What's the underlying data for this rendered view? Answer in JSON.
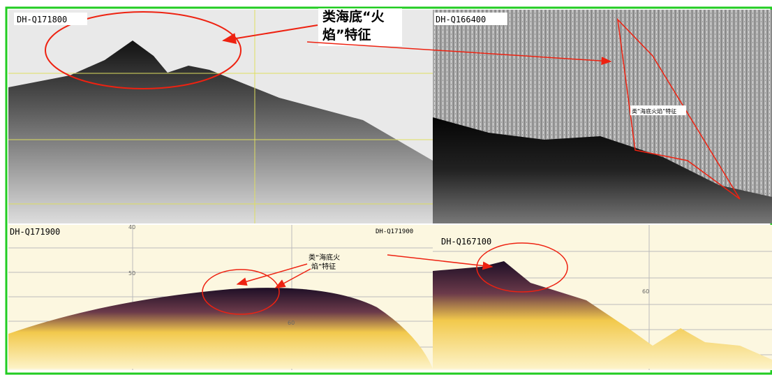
{
  "panels": [
    {
      "label": "DH-Q171800",
      "annotation": [
        "类海底“火",
        "焰”特征"
      ]
    },
    {
      "label": "DH-Q166400",
      "annotation": [
        "类“海底火焰”特征"
      ]
    },
    {
      "label": "DH-Q171900",
      "label2": "DH-Q171900",
      "annotation": [
        "类“海底火",
        "焰”特征"
      ],
      "axis": [
        "40",
        "50",
        "60"
      ]
    },
    {
      "label": "DH-Q167100",
      "axis": [
        "60"
      ]
    }
  ]
}
